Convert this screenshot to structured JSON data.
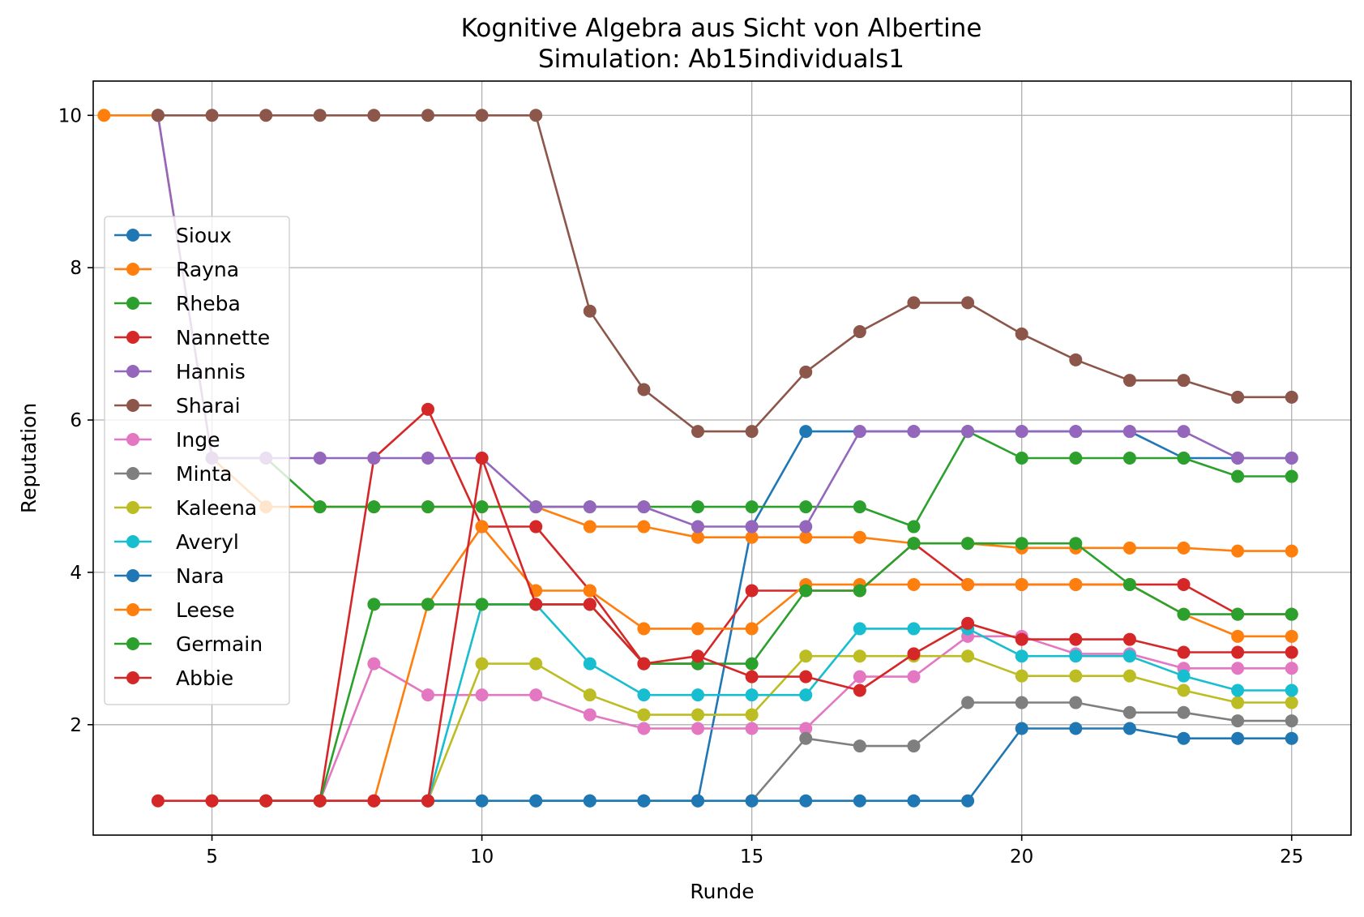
{
  "chart_data": {
    "type": "line",
    "title": "Kognitive Algebra aus Sicht von Albertine",
    "subtitle": "Simulation: Ab15individuals1",
    "xlabel": "Runde",
    "ylabel": "Reputation",
    "xlim": [
      2.8,
      26.1
    ],
    "ylim": [
      0.55,
      10.45
    ],
    "xticks": [
      5,
      10,
      15,
      20,
      25
    ],
    "yticks": [
      2,
      4,
      6,
      8,
      10
    ],
    "grid": true,
    "legend_position": "center-left",
    "series": [
      {
        "name": "Sioux",
        "color": "#1f77b4",
        "x": [
          11,
          12,
          13,
          14,
          15,
          16,
          17,
          18,
          19,
          20,
          21,
          22,
          23,
          24,
          25
        ],
        "y": [
          1,
          1,
          1,
          1,
          4.6,
          5.85,
          5.85,
          5.85,
          5.85,
          5.85,
          5.85,
          5.85,
          5.5,
          5.5,
          5.5
        ]
      },
      {
        "name": "Rayna",
        "color": "#ff7f0e",
        "x": [
          3,
          4,
          5,
          6,
          7,
          8,
          9,
          10,
          11,
          12,
          13,
          14,
          15,
          16,
          17,
          18,
          19,
          20,
          21,
          22,
          23,
          24,
          25
        ],
        "y": [
          10,
          10,
          5.5,
          4.86,
          4.86,
          4.86,
          4.86,
          4.86,
          4.86,
          4.6,
          4.6,
          4.46,
          4.46,
          4.46,
          4.46,
          4.38,
          4.38,
          4.32,
          4.32,
          4.32,
          4.32,
          4.28,
          4.28
        ]
      },
      {
        "name": "Rheba",
        "color": "#2ca02c",
        "x": [
          5,
          6,
          7,
          8,
          9,
          10,
          11,
          12,
          13,
          14,
          15,
          16,
          17,
          18,
          19,
          20,
          21,
          22,
          23,
          24,
          25
        ],
        "y": [
          5.5,
          5.5,
          4.86,
          4.86,
          4.86,
          4.86,
          4.86,
          4.86,
          4.86,
          4.86,
          4.86,
          4.86,
          4.86,
          4.6,
          5.85,
          5.5,
          5.5,
          5.5,
          5.5,
          5.26,
          5.26
        ]
      },
      {
        "name": "Nannette",
        "color": "#d62728",
        "x": [
          7,
          8,
          9,
          10,
          11,
          12,
          13,
          14,
          15,
          16,
          17,
          18,
          19,
          20,
          21,
          22,
          23,
          24,
          25
        ],
        "y": [
          1,
          5.5,
          6.14,
          4.6,
          4.6,
          3.76,
          2.8,
          2.8,
          3.76,
          3.76,
          3.76,
          4.38,
          3.84,
          3.84,
          3.84,
          3.84,
          3.84,
          3.45,
          3.45
        ]
      },
      {
        "name": "Hannis",
        "color": "#9467bd",
        "x": [
          4,
          5,
          6,
          7,
          8,
          9,
          10,
          11,
          12,
          13,
          14,
          15,
          16,
          17,
          18,
          19,
          20,
          21,
          22,
          23,
          24,
          25
        ],
        "y": [
          10,
          5.5,
          5.5,
          5.5,
          5.5,
          5.5,
          5.5,
          4.86,
          4.86,
          4.86,
          4.6,
          4.6,
          4.6,
          5.85,
          5.85,
          5.85,
          5.85,
          5.85,
          5.85,
          5.85,
          5.5,
          5.5
        ]
      },
      {
        "name": "Sharai",
        "color": "#8c564b",
        "x": [
          4,
          5,
          6,
          7,
          8,
          9,
          10,
          11,
          12,
          13,
          14,
          15,
          16,
          17,
          18,
          19,
          20,
          21,
          22,
          23,
          24,
          25
        ],
        "y": [
          10,
          10,
          10,
          10,
          10,
          10,
          10,
          10,
          7.43,
          6.4,
          5.85,
          5.85,
          6.63,
          7.16,
          7.54,
          7.54,
          7.13,
          6.79,
          6.52,
          6.52,
          6.3,
          6.3
        ]
      },
      {
        "name": "Inge",
        "color": "#e377c2",
        "x": [
          7,
          8,
          9,
          10,
          11,
          12,
          13,
          14,
          15,
          16,
          17,
          18,
          19,
          20,
          21,
          22,
          23,
          24,
          25
        ],
        "y": [
          1,
          2.8,
          2.39,
          2.39,
          2.39,
          2.13,
          1.95,
          1.95,
          1.95,
          1.95,
          2.63,
          2.63,
          3.16,
          3.16,
          2.93,
          2.93,
          2.74,
          2.74,
          2.74
        ]
      },
      {
        "name": "Minta",
        "color": "#7f7f7f",
        "x": [
          15,
          16,
          17,
          18,
          19,
          20,
          21,
          22,
          23,
          24,
          25
        ],
        "y": [
          1,
          1.82,
          1.72,
          1.72,
          2.29,
          2.29,
          2.29,
          2.16,
          2.16,
          2.05,
          2.05
        ]
      },
      {
        "name": "Kaleena",
        "color": "#bcbd22",
        "x": [
          9,
          10,
          11,
          12,
          13,
          14,
          15,
          16,
          17,
          18,
          19,
          20,
          21,
          22,
          23,
          24,
          25
        ],
        "y": [
          1,
          2.8,
          2.8,
          2.39,
          2.13,
          2.13,
          2.13,
          2.9,
          2.9,
          2.9,
          2.9,
          2.64,
          2.64,
          2.64,
          2.45,
          2.29,
          2.29
        ]
      },
      {
        "name": "Averyl",
        "color": "#17becf",
        "x": [
          9,
          10,
          11,
          12,
          13,
          14,
          15,
          16,
          17,
          18,
          19,
          20,
          21,
          22,
          23,
          24,
          25
        ],
        "y": [
          1,
          3.58,
          3.58,
          2.8,
          2.39,
          2.39,
          2.39,
          2.39,
          3.26,
          3.26,
          3.26,
          2.9,
          2.9,
          2.9,
          2.64,
          2.45,
          2.45
        ]
      },
      {
        "name": "Nara",
        "color": "#1f77b4",
        "x": [
          5,
          6,
          7,
          8,
          9,
          10,
          11,
          12,
          13,
          14,
          15,
          16,
          17,
          18,
          19,
          20,
          21,
          22,
          23,
          24,
          25
        ],
        "y": [
          1,
          1,
          1,
          1,
          1,
          1,
          1,
          1,
          1,
          1,
          1,
          1,
          1,
          1,
          1,
          1.95,
          1.95,
          1.95,
          1.82,
          1.82,
          1.82
        ]
      },
      {
        "name": "Leese",
        "color": "#ff7f0e",
        "x": [
          5,
          6,
          7,
          8,
          9,
          10,
          11,
          12,
          13,
          14,
          15,
          16,
          17,
          18,
          19,
          20,
          21,
          22,
          23,
          24,
          25
        ],
        "y": [
          1,
          1,
          1,
          1,
          3.58,
          4.6,
          3.76,
          3.76,
          3.26,
          3.26,
          3.26,
          3.84,
          3.84,
          3.84,
          3.84,
          3.84,
          3.84,
          3.84,
          3.45,
          3.16,
          3.16
        ]
      },
      {
        "name": "Germain",
        "color": "#2ca02c",
        "x": [
          6,
          7,
          8,
          9,
          10,
          11,
          12,
          13,
          14,
          15,
          16,
          17,
          18,
          19,
          20,
          21,
          22,
          23,
          24,
          25
        ],
        "y": [
          1,
          1,
          3.58,
          3.58,
          3.58,
          3.58,
          3.58,
          2.8,
          2.8,
          2.8,
          3.76,
          3.76,
          4.38,
          4.38,
          4.38,
          4.38,
          3.84,
          3.45,
          3.45,
          3.45
        ]
      },
      {
        "name": "Abbie",
        "color": "#d62728",
        "x": [
          4,
          5,
          6,
          7,
          8,
          9,
          10,
          11,
          12,
          13,
          14,
          15,
          16,
          17,
          18,
          19,
          20,
          21,
          22,
          23,
          24,
          25
        ],
        "y": [
          1,
          1,
          1,
          1,
          1,
          1,
          5.5,
          3.58,
          3.58,
          2.8,
          2.9,
          2.63,
          2.63,
          2.45,
          2.93,
          3.33,
          3.12,
          3.12,
          3.12,
          2.95,
          2.95,
          2.95
        ]
      }
    ]
  }
}
